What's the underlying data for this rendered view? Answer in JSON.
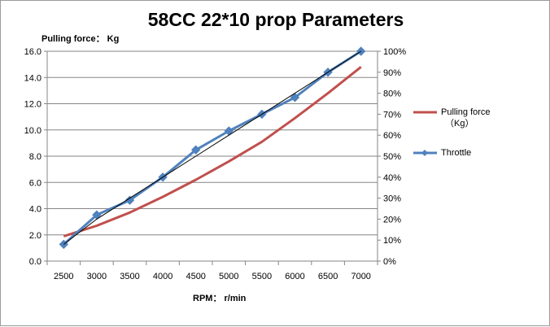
{
  "chart_data": {
    "type": "line",
    "title": "58CC  22*10 prop Parameters",
    "ylabel": "Pulling force： Kg",
    "xlabel": "RPM： r/min",
    "categories": [
      "2500",
      "3000",
      "3500",
      "4000",
      "4500",
      "5000",
      "5500",
      "6000",
      "6500",
      "7000"
    ],
    "y_left": {
      "min": 0,
      "max": 16,
      "step": 2,
      "ticks": [
        "0.0",
        "2.0",
        "4.0",
        "6.0",
        "8.0",
        "10.0",
        "12.0",
        "14.0",
        "16.0"
      ]
    },
    "y_right": {
      "min": 0,
      "max": 100,
      "step": 10,
      "ticks": [
        "0%",
        "10%",
        "20%",
        "30%",
        "40%",
        "50%",
        "60%",
        "70%",
        "80%",
        "90%",
        "100%"
      ]
    },
    "series": [
      {
        "name": "Pulling force\n（Kg）",
        "axis": "left",
        "color": "#c0504d",
        "values": [
          1.9,
          2.7,
          3.7,
          4.9,
          6.2,
          7.6,
          9.1,
          10.9,
          12.8,
          14.8
        ]
      },
      {
        "name": "Throttle",
        "axis": "right",
        "color": "#4f81bd",
        "marker": "diamond",
        "values": [
          8,
          22,
          29,
          40,
          53,
          62,
          70,
          78,
          90,
          100
        ]
      },
      {
        "name": "",
        "axis": "right",
        "color": "#000000",
        "values": [
          8,
          20,
          30,
          40,
          50,
          60,
          70,
          80,
          90,
          100
        ]
      }
    ],
    "grid": "horizontal-left",
    "legend": "right"
  }
}
